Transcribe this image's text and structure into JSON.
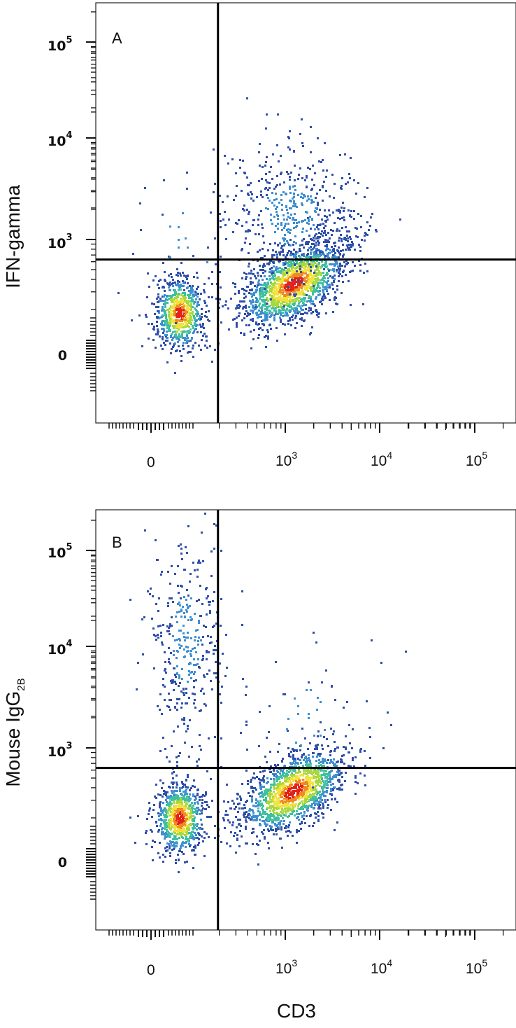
{
  "chart_data": [
    {
      "type": "scatter",
      "panel_label": "A",
      "ylabel": "IFN-gamma",
      "xlabel": "CD3",
      "x_scale": "biexponential",
      "y_scale": "biexponential",
      "x_ticks": [
        {
          "base": "0",
          "exp": ""
        },
        {
          "base": "10",
          "exp": "3"
        },
        {
          "base": "10",
          "exp": "4"
        },
        {
          "base": "10",
          "exp": "5"
        }
      ],
      "y_ticks": [
        {
          "base": "0",
          "exp": ""
        },
        {
          "base": "10",
          "exp": "3"
        },
        {
          "base": "10",
          "exp": "4"
        },
        {
          "base": "10",
          "exp": "5"
        }
      ],
      "quadrant_gate": {
        "x": 150,
        "y": 500
      },
      "populations": [
        {
          "name": "",
          "center_x": 50,
          "center_y": 80,
          "events": 750
        },
        {
          "name": "",
          "center_x": 1200,
          "center_y": 220,
          "events": 1500
        },
        {
          "name": "",
          "center_x": 1100,
          "center_y": 1800,
          "events": 520
        },
        {
          "name": "",
          "center_x": 60,
          "center_y": 900,
          "events": 45
        }
      ],
      "density_colors": [
        "#2f4fa8",
        "#3f8fcf",
        "#40c0a0",
        "#a8d840",
        "#f2e23c",
        "#f08a24",
        "#e2231a"
      ]
    },
    {
      "type": "scatter",
      "panel_label": "B",
      "ylabel": "Mouse IgG",
      "ylabel_subscript": "2B",
      "xlabel": "CD3",
      "x_scale": "biexponential",
      "y_scale": "biexponential",
      "x_ticks": [
        {
          "base": "0",
          "exp": ""
        },
        {
          "base": "10",
          "exp": "3"
        },
        {
          "base": "10",
          "exp": "4"
        },
        {
          "base": "10",
          "exp": "5"
        }
      ],
      "y_ticks": [
        {
          "base": "0",
          "exp": ""
        },
        {
          "base": "10",
          "exp": "3"
        },
        {
          "base": "10",
          "exp": "4"
        },
        {
          "base": "10",
          "exp": "5"
        }
      ],
      "quadrant_gate": {
        "x": 150,
        "y": 500
      },
      "populations": [
        {
          "name": "",
          "center_x": 50,
          "center_y": 90,
          "events": 800
        },
        {
          "name": "",
          "center_x": 1200,
          "center_y": 230,
          "events": 1450
        },
        {
          "name": "",
          "center_x": 60,
          "center_y": 12000,
          "events": 360
        },
        {
          "name": "",
          "center_x": 1500,
          "center_y": 2000,
          "events": 60
        }
      ],
      "density_colors": [
        "#2f4fa8",
        "#3f8fcf",
        "#40c0a0",
        "#a8d840",
        "#f2e23c",
        "#f08a24",
        "#e2231a"
      ]
    }
  ],
  "shared_xlabel": "CD3"
}
